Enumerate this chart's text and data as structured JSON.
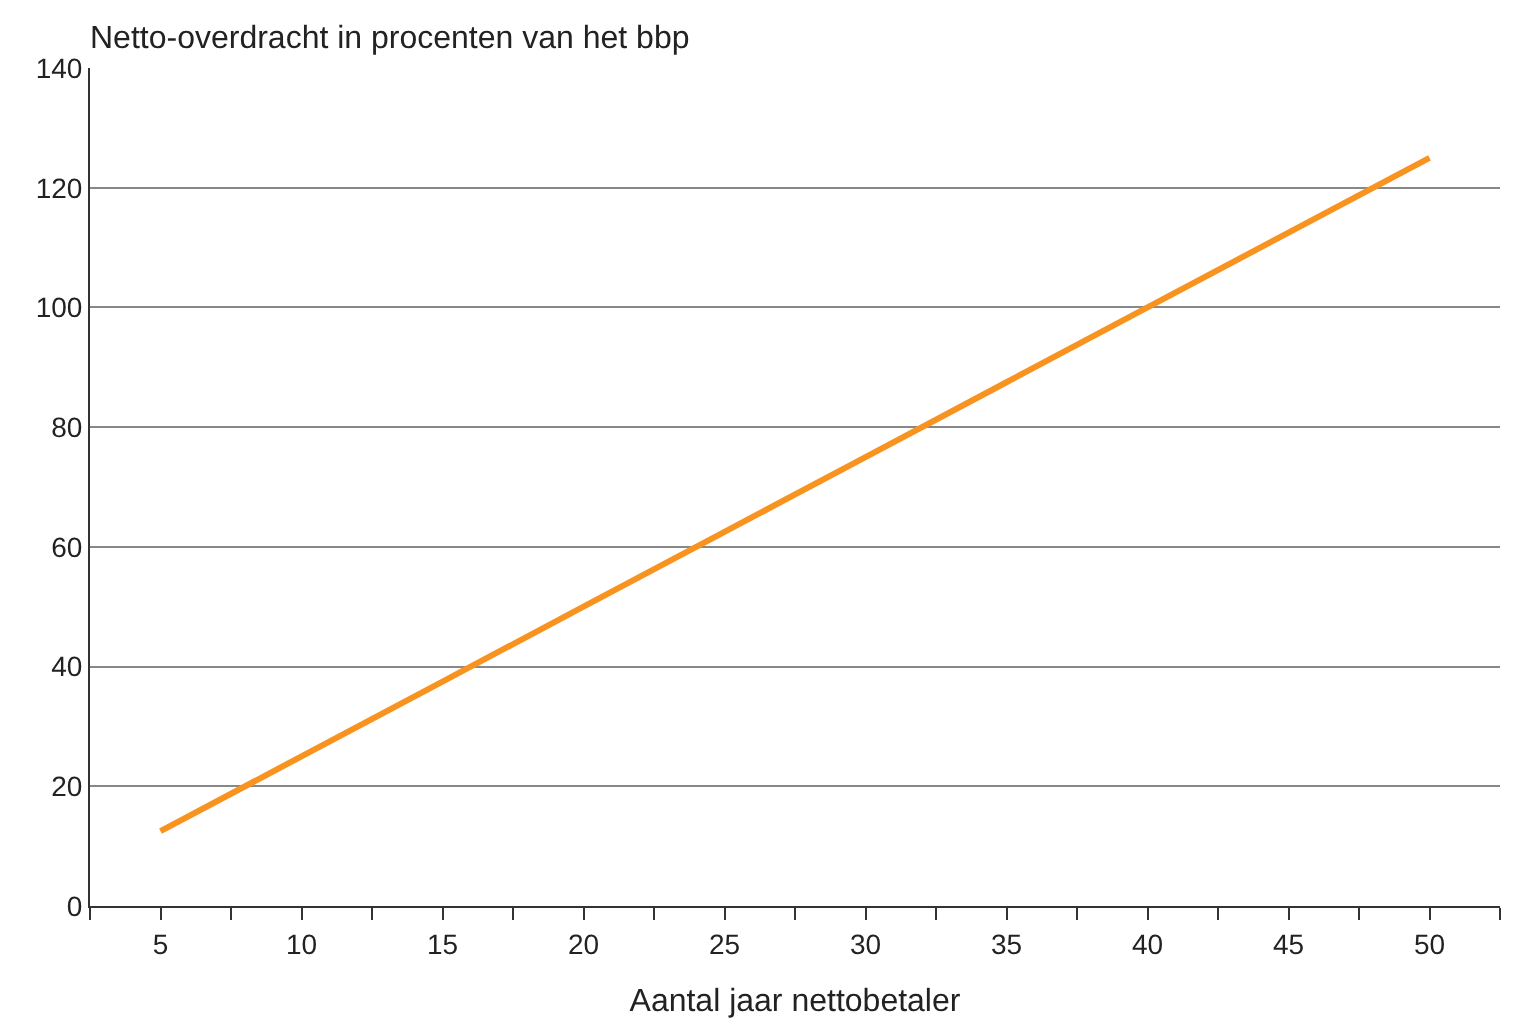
{
  "chart_data": {
    "type": "line",
    "ylabel": "Netto-overdracht in procenten van het bbp",
    "xlabel": "Aantal jaar nettobetaler",
    "x": [
      5,
      10,
      15,
      20,
      25,
      30,
      35,
      40,
      45,
      50
    ],
    "series": [
      {
        "color": "#f7931e",
        "values": [
          12.5,
          25,
          37.5,
          50,
          62.5,
          75,
          87.5,
          100,
          112.5,
          125
        ]
      }
    ],
    "xlim": [
      2.5,
      52.5
    ],
    "xticks": [
      {
        "value": 2.5,
        "label": null
      },
      5,
      {
        "value": 7.5,
        "label": null
      },
      10,
      {
        "value": 12.5,
        "label": null
      },
      15,
      {
        "value": 17.5,
        "label": null
      },
      20,
      {
        "value": 22.5,
        "label": null
      },
      25,
      {
        "value": 27.5,
        "label": null
      },
      30,
      {
        "value": 32.5,
        "label": null
      },
      35,
      {
        "value": 37.5,
        "label": null
      },
      40,
      {
        "value": 42.5,
        "label": null
      },
      45,
      {
        "value": 47.5,
        "label": null
      },
      50,
      {
        "value": 52.5,
        "label": null
      }
    ],
    "ylim": [
      0,
      140
    ],
    "yticks": [
      0,
      20,
      40,
      60,
      80,
      100,
      120,
      140
    ],
    "grid": "y",
    "marker": "none",
    "line_style": "solid"
  }
}
